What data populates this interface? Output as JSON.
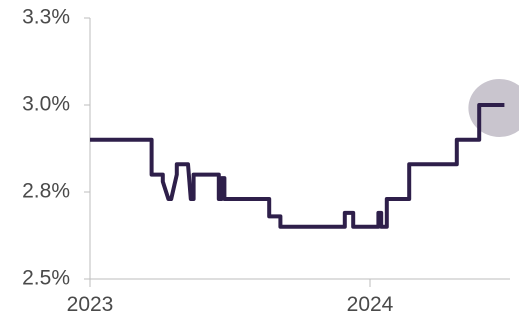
{
  "chart_data": {
    "type": "line",
    "title": "",
    "xlabel": "",
    "ylabel": "",
    "y_tick_labels": [
      "2.5%",
      "2.8%",
      "3.0%",
      "3.3%"
    ],
    "y_ticks": [
      2.5,
      2.75,
      3.0,
      3.25
    ],
    "x_tick_labels": [
      "2023",
      "2024"
    ],
    "x_ticks": [
      2023.0,
      2024.0
    ],
    "xlim": [
      2023.0,
      2024.5
    ],
    "ylim": [
      2.5,
      3.25
    ],
    "grid": false,
    "legend": "none",
    "line_color": "#2e1f4a",
    "highlight_color": "#c9c5ce",
    "highlight_note": "shaded circle marks the latest value (3.0%)",
    "series": [
      {
        "x": [
          2023.0,
          2023.22,
          2023.22,
          2023.26,
          2023.26,
          2023.28,
          2023.29,
          2023.31,
          2023.31,
          2023.35,
          2023.36,
          2023.37,
          2023.37,
          2023.46,
          2023.46,
          2023.47,
          2023.47,
          2023.48,
          2023.48,
          2023.64,
          2023.64,
          2023.68,
          2023.68,
          2023.91,
          2023.91,
          2023.94,
          2023.94,
          2024.03,
          2024.03,
          2024.04,
          2024.04,
          2024.06,
          2024.06,
          2024.14,
          2024.14,
          2024.31,
          2024.31,
          2024.39,
          2024.39,
          2024.48
        ],
        "y": [
          2.9,
          2.9,
          2.8,
          2.8,
          2.78,
          2.73,
          2.73,
          2.8,
          2.83,
          2.83,
          2.73,
          2.73,
          2.8,
          2.8,
          2.73,
          2.73,
          2.79,
          2.79,
          2.73,
          2.73,
          2.68,
          2.68,
          2.65,
          2.65,
          2.69,
          2.69,
          2.65,
          2.65,
          2.69,
          2.69,
          2.65,
          2.65,
          2.73,
          2.73,
          2.83,
          2.83,
          2.9,
          2.9,
          3.0,
          3.0
        ]
      }
    ]
  }
}
